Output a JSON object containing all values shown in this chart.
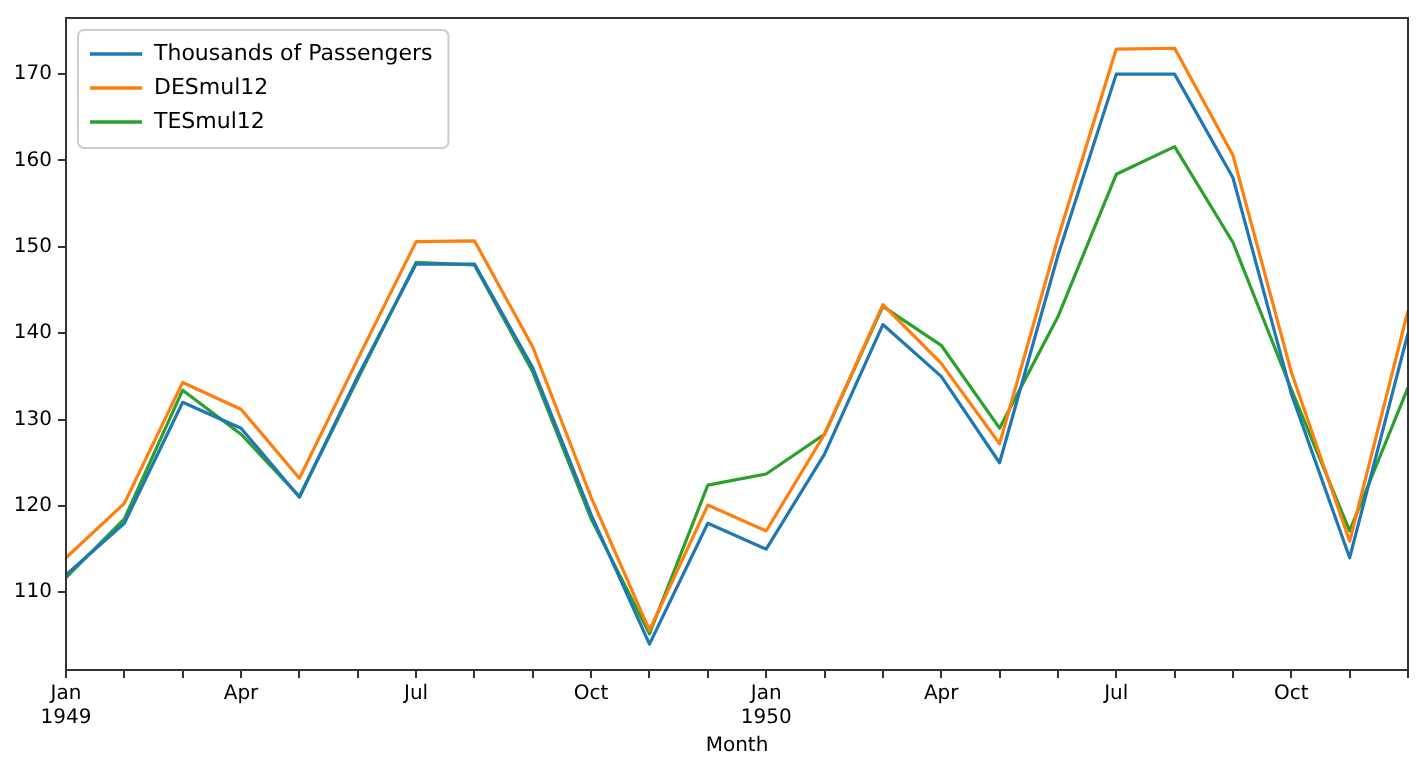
{
  "chart_data": {
    "type": "line",
    "xlabel": "Month",
    "x": [
      "1949-01",
      "1949-02",
      "1949-03",
      "1949-04",
      "1949-05",
      "1949-06",
      "1949-07",
      "1949-08",
      "1949-09",
      "1949-10",
      "1949-11",
      "1949-12",
      "1950-01",
      "1950-02",
      "1950-03",
      "1950-04",
      "1950-05",
      "1950-06",
      "1950-07",
      "1950-08",
      "1950-09",
      "1950-10",
      "1950-11",
      "1950-12"
    ],
    "series": [
      {
        "name": "Thousands of Passengers",
        "color": "#1f77b4",
        "values": [
          112,
          118,
          132,
          129,
          121,
          135,
          148,
          148,
          136,
          119,
          104,
          118,
          115,
          126,
          141,
          135,
          125,
          149,
          170,
          170,
          158,
          133,
          114,
          140
        ]
      },
      {
        "name": "DESmul12",
        "color": "#ff7f0e",
        "values": [
          114,
          120.3,
          134.3,
          131.2,
          123.2,
          137,
          150.6,
          150.7,
          138.4,
          121,
          105.6,
          120.1,
          117.1,
          128.3,
          143.3,
          136.5,
          127.2,
          151,
          172.9,
          173,
          160.6,
          135.5,
          115.9,
          142.6
        ]
      },
      {
        "name": "TESmul12",
        "color": "#2ca02c",
        "values": [
          111.7,
          118.5,
          133.4,
          128.3,
          121.1,
          134.7,
          148.2,
          147.9,
          135.5,
          118.5,
          105.2,
          122.4,
          123.7,
          128.3,
          143.1,
          138.6,
          129,
          141.9,
          158.4,
          161.6,
          150.5,
          133.5,
          117.1,
          133.7
        ]
      }
    ],
    "xlim": [
      "1949-01",
      "1950-12"
    ],
    "xticks": [
      {
        "value": "1949-01",
        "label": "Jan\n1949"
      },
      {
        "value": "1949-02",
        "label": null
      },
      {
        "value": "1949-03",
        "label": null
      },
      {
        "value": "1949-04",
        "label": "Apr"
      },
      {
        "value": "1949-05",
        "label": null
      },
      {
        "value": "1949-06",
        "label": null
      },
      {
        "value": "1949-07",
        "label": "Jul"
      },
      {
        "value": "1949-08",
        "label": null
      },
      {
        "value": "1949-09",
        "label": null
      },
      {
        "value": "1949-10",
        "label": "Oct"
      },
      {
        "value": "1949-11",
        "label": null
      },
      {
        "value": "1949-12",
        "label": null
      },
      {
        "value": "1950-01",
        "label": "Jan\n1950"
      },
      {
        "value": "1950-02",
        "label": null
      },
      {
        "value": "1950-03",
        "label": null
      },
      {
        "value": "1950-04",
        "label": "Apr"
      },
      {
        "value": "1950-05",
        "label": null
      },
      {
        "value": "1950-06",
        "label": null
      },
      {
        "value": "1950-07",
        "label": "Jul"
      },
      {
        "value": "1950-08",
        "label": null
      },
      {
        "value": "1950-09",
        "label": null
      },
      {
        "value": "1950-10",
        "label": "Oct"
      },
      {
        "value": "1950-11",
        "label": null
      },
      {
        "value": "1950-12",
        "label": null
      }
    ],
    "ylim": [
      101,
      176.5
    ],
    "yticks": [
      110,
      120,
      130,
      140,
      150,
      160,
      170
    ],
    "grid": false,
    "legend": "top left",
    "marker": "none",
    "line_style": "solid"
  }
}
